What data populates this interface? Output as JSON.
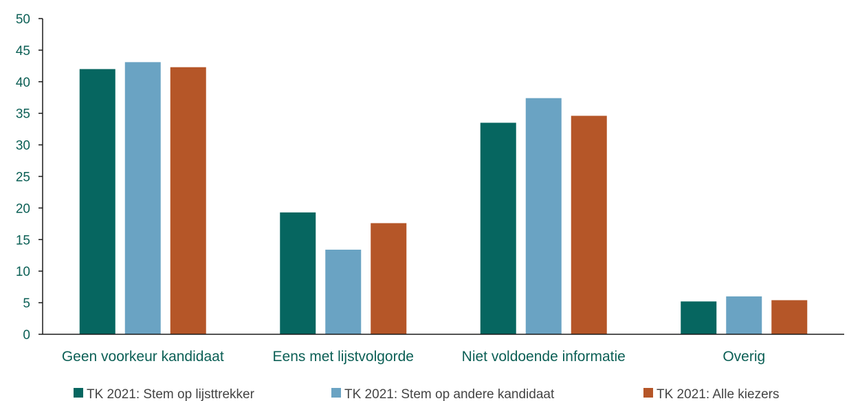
{
  "chart_data": {
    "type": "bar",
    "categories": [
      "Geen voorkeur kandidaat",
      "Eens met lijstvolgorde",
      "Niet voldoende informatie",
      "Overig"
    ],
    "series": [
      {
        "name": "TK 2021: Stem op lijsttrekker",
        "color": "#066660",
        "values": [
          42.0,
          19.3,
          33.5,
          5.2
        ]
      },
      {
        "name": "TK 2021: Stem op andere kandidaat",
        "color": "#6aa3c3",
        "values": [
          43.1,
          13.4,
          37.4,
          6.0
        ]
      },
      {
        "name": "TK 2021: Alle kiezers",
        "color": "#b55628",
        "values": [
          42.3,
          17.6,
          34.6,
          5.4
        ]
      }
    ],
    "ylim": [
      0,
      50
    ],
    "yticks": [
      "0",
      "5",
      "10",
      "15",
      "20",
      "25",
      "30",
      "35",
      "40",
      "45",
      "50"
    ],
    "grid": false,
    "legend_position": "bottom"
  }
}
